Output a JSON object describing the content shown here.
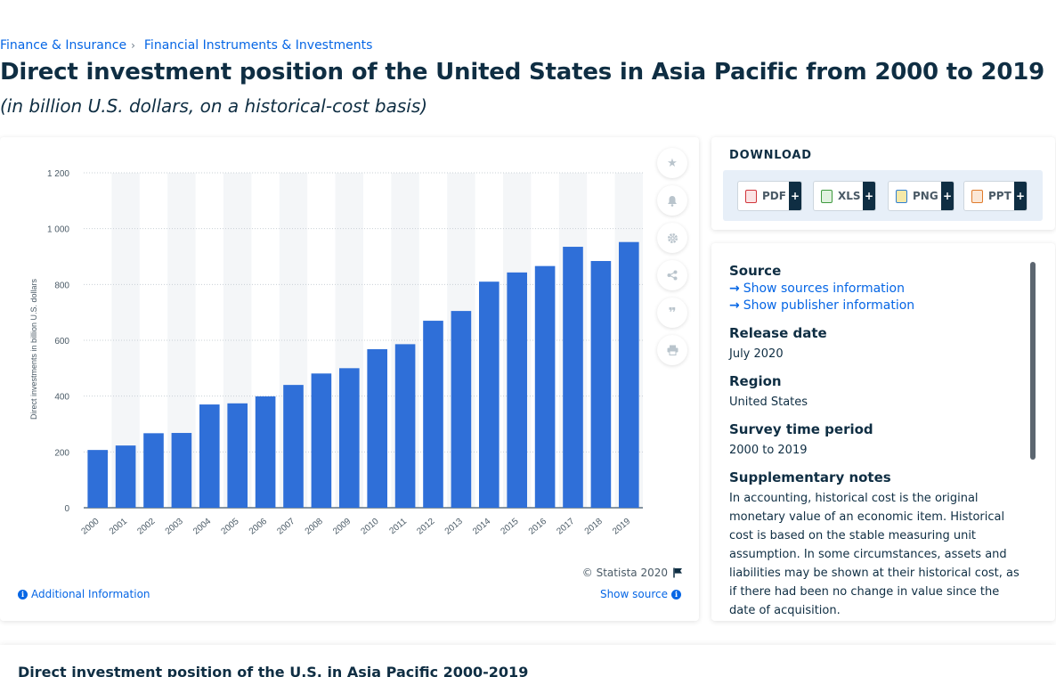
{
  "breadcrumb": {
    "items": [
      "Finance & Insurance",
      "Financial Instruments & Investments"
    ],
    "separator": "›"
  },
  "page": {
    "title": "Direct investment position of the United States in Asia Pacific from 2000 to 2019",
    "subtitle": "(in billion U.S. dollars, on a historical-cost basis)"
  },
  "chart_footer": {
    "copyright": "© Statista 2020",
    "additional_info": "Additional Information",
    "show_source": "Show source"
  },
  "download": {
    "title": "DOWNLOAD",
    "buttons": [
      {
        "label": "PDF",
        "icon": "pdf-file-icon",
        "color": "#d1343a"
      },
      {
        "label": "XLS",
        "icon": "xls-file-icon",
        "color": "#3e9a3e"
      },
      {
        "label": "PNG",
        "icon": "png-file-icon",
        "color": "#2f7fd1"
      },
      {
        "label": "PPT",
        "icon": "ppt-file-icon",
        "color": "#e07b2b"
      }
    ],
    "plus": "+"
  },
  "info": {
    "source_label": "Source",
    "show_sources": "Show sources information",
    "show_publisher": "Show publisher information",
    "release_label": "Release date",
    "release_value": "July 2020",
    "region_label": "Region",
    "region_value": "United States",
    "survey_label": "Survey time period",
    "survey_value": "2000 to 2019",
    "notes_label": "Supplementary notes",
    "notes_value": "In accounting, historical cost is the original monetary value of an economic item. Historical cost is based on the stable measuring unit assumption. In some circumstances, assets and liabilities may be shown at their historical cost, as if there had been no change in value since the date of acquisition."
  },
  "bottom": {
    "title": "Direct investment position of the U.S. in Asia Pacific 2000-2019"
  },
  "colors": {
    "bar": "#2f6fd8",
    "column_band": "#f4f6f8",
    "link": "#0666e5"
  },
  "chart_data": {
    "type": "bar",
    "categories": [
      "2000",
      "2001",
      "2002",
      "2003",
      "2004",
      "2005",
      "2006",
      "2007",
      "2008",
      "2009",
      "2010",
      "2011",
      "2012",
      "2013",
      "2014",
      "2015",
      "2016",
      "2017",
      "2018",
      "2019"
    ],
    "values": [
      207,
      223,
      267,
      268,
      370,
      374,
      399,
      440,
      481,
      500,
      568,
      586,
      670,
      705,
      810,
      843,
      866,
      935,
      884,
      952
    ],
    "ylabel": "Direct investments in billion U.S. dollars",
    "xlabel": "",
    "yticks": [
      0,
      200,
      400,
      600,
      800,
      1000,
      1200
    ],
    "ytick_labels": [
      "0",
      "200",
      "400",
      "600",
      "800",
      "1 000",
      "1 200"
    ],
    "ylim": [
      0,
      1200
    ],
    "grid": true,
    "legend": false
  }
}
